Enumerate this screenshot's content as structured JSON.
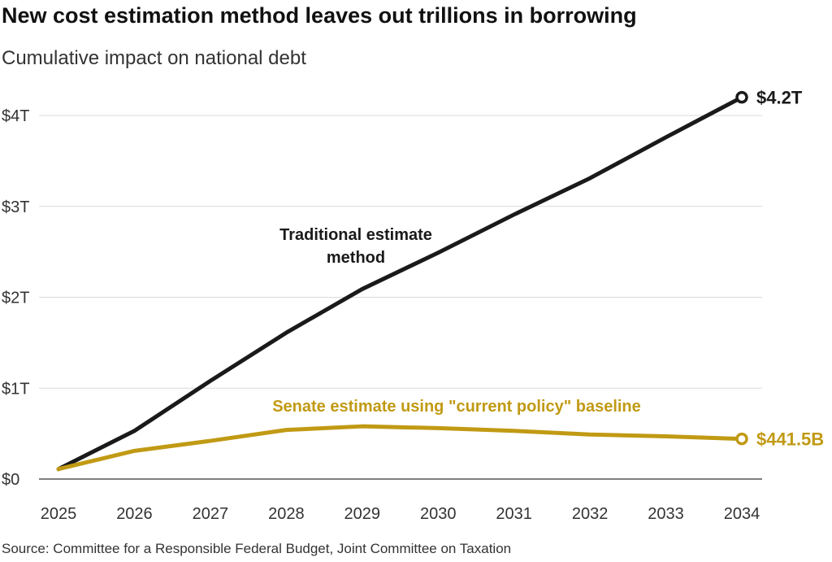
{
  "chart_data": {
    "type": "line",
    "title": "New cost estimation method leaves out trillions in borrowing",
    "subtitle": "Cumulative impact on national debt",
    "source": "Source: Committee for a Responsible Federal Budget, Joint Committee on Taxation",
    "x": [
      2025,
      2026,
      2027,
      2028,
      2029,
      2030,
      2031,
      2032,
      2033,
      2034
    ],
    "x_tick_labels": [
      "2025",
      "2026",
      "2027",
      "2028",
      "2029",
      "2030",
      "2031",
      "2032",
      "2033",
      "2034"
    ],
    "ylim": [
      0,
      4.2
    ],
    "y_ticks": [
      0,
      1,
      2,
      3,
      4
    ],
    "y_tick_labels": [
      "$0",
      "$1T",
      "$2T",
      "$3T",
      "$4T"
    ],
    "unit": "trillions of dollars",
    "grid": "horizontal",
    "series": [
      {
        "name": "Traditional estimate method",
        "label_lines": [
          "Traditional estimate",
          "method"
        ],
        "color": "#1a1a1a",
        "values": [
          0.11,
          0.53,
          1.08,
          1.61,
          2.09,
          2.49,
          2.91,
          3.31,
          3.76,
          4.2
        ],
        "end_label": "$4.2T"
      },
      {
        "name": "Senate estimate using \"current policy\" baseline",
        "label_lines": [
          "Senate estimate using \"current policy\" baseline"
        ],
        "color": "#c19a14",
        "values": [
          0.11,
          0.31,
          0.42,
          0.54,
          0.58,
          0.56,
          0.53,
          0.49,
          0.47,
          0.4415
        ],
        "end_label": "$441.5B"
      }
    ]
  }
}
